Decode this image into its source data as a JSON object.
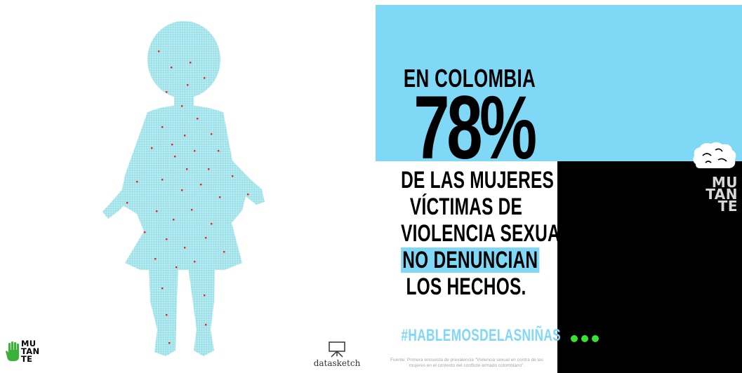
{
  "left_panel": {
    "logo_small": {
      "icon": "green-hand-icon",
      "text": "MU\nTAN\nTE",
      "hand_color": "#3cb13a"
    },
    "datasketch": {
      "icon": "easel-icon",
      "text": "datasketch"
    },
    "figure": {
      "icon": "girl-silhouette-dot-grid",
      "dot_color": "#9fe3ea",
      "highlight_color": "#e8231f"
    }
  },
  "infographic": {
    "intro": "EN COLOMBIA",
    "big_number": "78%",
    "statement_lines": [
      "DE LAS MUJERES",
      "VÍCTIMAS DE",
      "VIOLENCIA SEXUAL"
    ],
    "highlight": "NO DENUNCIAN",
    "last_line": "LOS HECHOS.",
    "hashtag": "#HABLEMOSDELASNIÑAS",
    "source_note": "Fuente: Primera encuesta de prevalencia \"Violencia sexual en contra de las mujeres en el contexto del conflicto armado colombiano\".",
    "logo_large": {
      "icon": "brain-icon",
      "text": "MU\nTAN\nTE"
    },
    "more_icon": "three-dots-icon",
    "colors": {
      "banner": "#7fd8f6",
      "black": "#000000",
      "dots": "#38e032"
    }
  }
}
